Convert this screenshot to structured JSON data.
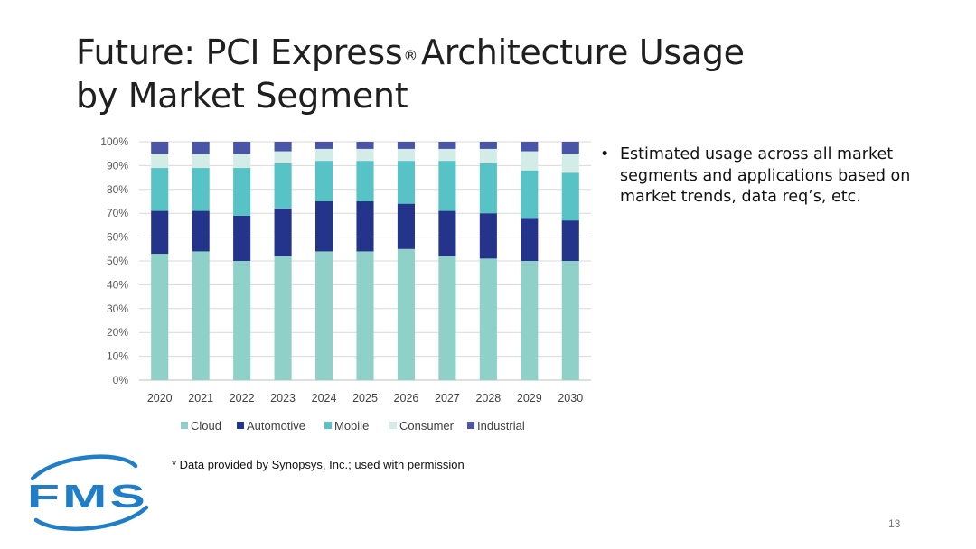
{
  "slide": {
    "title_line1_pre": "Future: PCI Express",
    "title_registered_mark": "®",
    "title_line1_post": "Architecture Usage",
    "title_line2": "by Market Segment",
    "bullet_marker": "•",
    "bullet_text": "Estimated usage across all market segments and applications based on market trends, data req’s, etc.",
    "footnote": "* Data provided by Synopsys, Inc.; used with permission",
    "page_number": "13",
    "logo_text": "FMS"
  },
  "colors": {
    "Cloud": "#8fd1c9",
    "Automotive": "#24348b",
    "Mobile": "#57c3c6",
    "Consumer": "#d3ece7",
    "Industrial": "#4a55a8",
    "logo": "#1f7ec7"
  },
  "chart_data": {
    "type": "bar",
    "stacked": true,
    "categories": [
      "2020",
      "2021",
      "2022",
      "2023",
      "2024",
      "2025",
      "2026",
      "2027",
      "2028",
      "2029",
      "2030"
    ],
    "series": [
      {
        "name": "Cloud",
        "values": [
          53,
          54,
          50,
          52,
          54,
          54,
          55,
          52,
          51,
          50,
          50
        ]
      },
      {
        "name": "Automotive",
        "values": [
          18,
          17,
          19,
          20,
          21,
          21,
          19,
          19,
          19,
          18,
          17
        ]
      },
      {
        "name": "Mobile",
        "values": [
          18,
          18,
          20,
          19,
          17,
          17,
          18,
          21,
          21,
          20,
          20
        ]
      },
      {
        "name": "Consumer",
        "values": [
          6,
          6,
          6,
          5,
          5,
          5,
          5,
          5,
          6,
          8,
          8
        ]
      },
      {
        "name": "Industrial",
        "values": [
          5,
          5,
          5,
          4,
          3,
          3,
          3,
          3,
          3,
          4,
          5
        ]
      }
    ],
    "yticks": [
      "0%",
      "10%",
      "20%",
      "30%",
      "40%",
      "50%",
      "60%",
      "70%",
      "80%",
      "90%",
      "100%"
    ],
    "ylim": [
      0,
      100
    ],
    "grid": true,
    "legend_position": "bottom"
  }
}
